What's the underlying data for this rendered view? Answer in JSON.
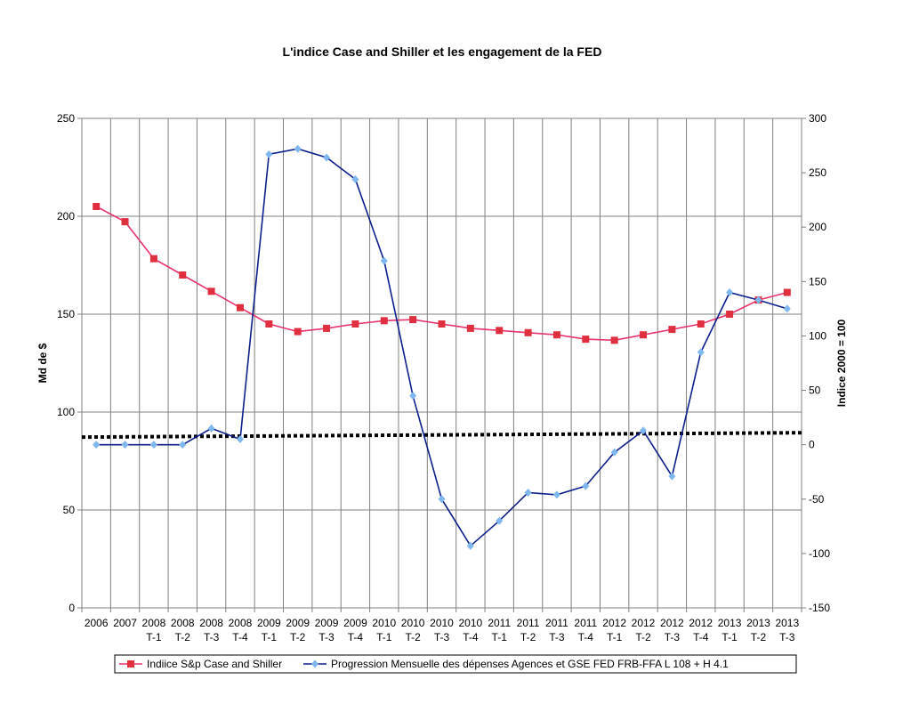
{
  "chart_data": {
    "type": "line",
    "title": "L'indice Case and Shiller et les engagement de la FED",
    "ylabel": "Md de $",
    "y2label": "Indice 2000 = 100",
    "ylim": [
      0,
      250
    ],
    "y2lim": [
      -150,
      300
    ],
    "yticks": [
      "0",
      "50",
      "100",
      "150",
      "200",
      "250"
    ],
    "y2ticks": [
      "-150",
      "-100",
      "-50",
      "0",
      "50",
      "100",
      "150",
      "200",
      "250",
      "300"
    ],
    "grid": true,
    "legend_position": "bottom",
    "categories": [
      [
        "2006",
        ""
      ],
      [
        "2007",
        ""
      ],
      [
        "2008",
        "T-1"
      ],
      [
        "2008",
        "T-2"
      ],
      [
        "2008",
        "T-3"
      ],
      [
        "2008",
        "T-4"
      ],
      [
        "2009",
        "T-1"
      ],
      [
        "2009",
        "T-2"
      ],
      [
        "2009",
        "T-3"
      ],
      [
        "2009",
        "T-4"
      ],
      [
        "2010",
        "T-1"
      ],
      [
        "2010",
        "T-2"
      ],
      [
        "2010",
        "T-3"
      ],
      [
        "2010",
        "T-4"
      ],
      [
        "2011",
        "T-1"
      ],
      [
        "2011",
        "T-2"
      ],
      [
        "2011",
        "T-3"
      ],
      [
        "2011",
        "T-4"
      ],
      [
        "2012",
        "T-1"
      ],
      [
        "2012",
        "T-2"
      ],
      [
        "2012",
        "T-3"
      ],
      [
        "2012",
        "T-4"
      ],
      [
        "2013",
        "T-1"
      ],
      [
        "2013",
        "T-2"
      ],
      [
        "2013",
        "T-3"
      ]
    ],
    "series": [
      {
        "name": "Indiice S&p Case and Shiller",
        "axis": "right",
        "color": "#e8336d",
        "marker_color": "#e03040",
        "marker": "square",
        "values": [
          219,
          205,
          171,
          156,
          141,
          126,
          111,
          104,
          107,
          111,
          114,
          115,
          111,
          107,
          105,
          103,
          101,
          97,
          96,
          101,
          106,
          111,
          120,
          133,
          140
        ]
      },
      {
        "name": "Progression Mensuelle des dépenses Agences et GSE FED FRB-FFA L 108 + H 4.1",
        "axis": "right",
        "color": "#0d1f8c",
        "marker_color": "#7fb7f0",
        "marker": "diamond",
        "values": [
          0,
          0,
          0,
          0,
          15,
          5,
          267,
          272,
          264,
          244,
          169,
          45,
          -50,
          -93,
          -70,
          -44,
          -46,
          -38,
          -7,
          13,
          -29,
          85,
          140,
          133,
          125
        ]
      }
    ],
    "trendline": {
      "axis": "right",
      "color": "#000000",
      "style": "dotted",
      "values": [
        7,
        11
      ]
    }
  }
}
